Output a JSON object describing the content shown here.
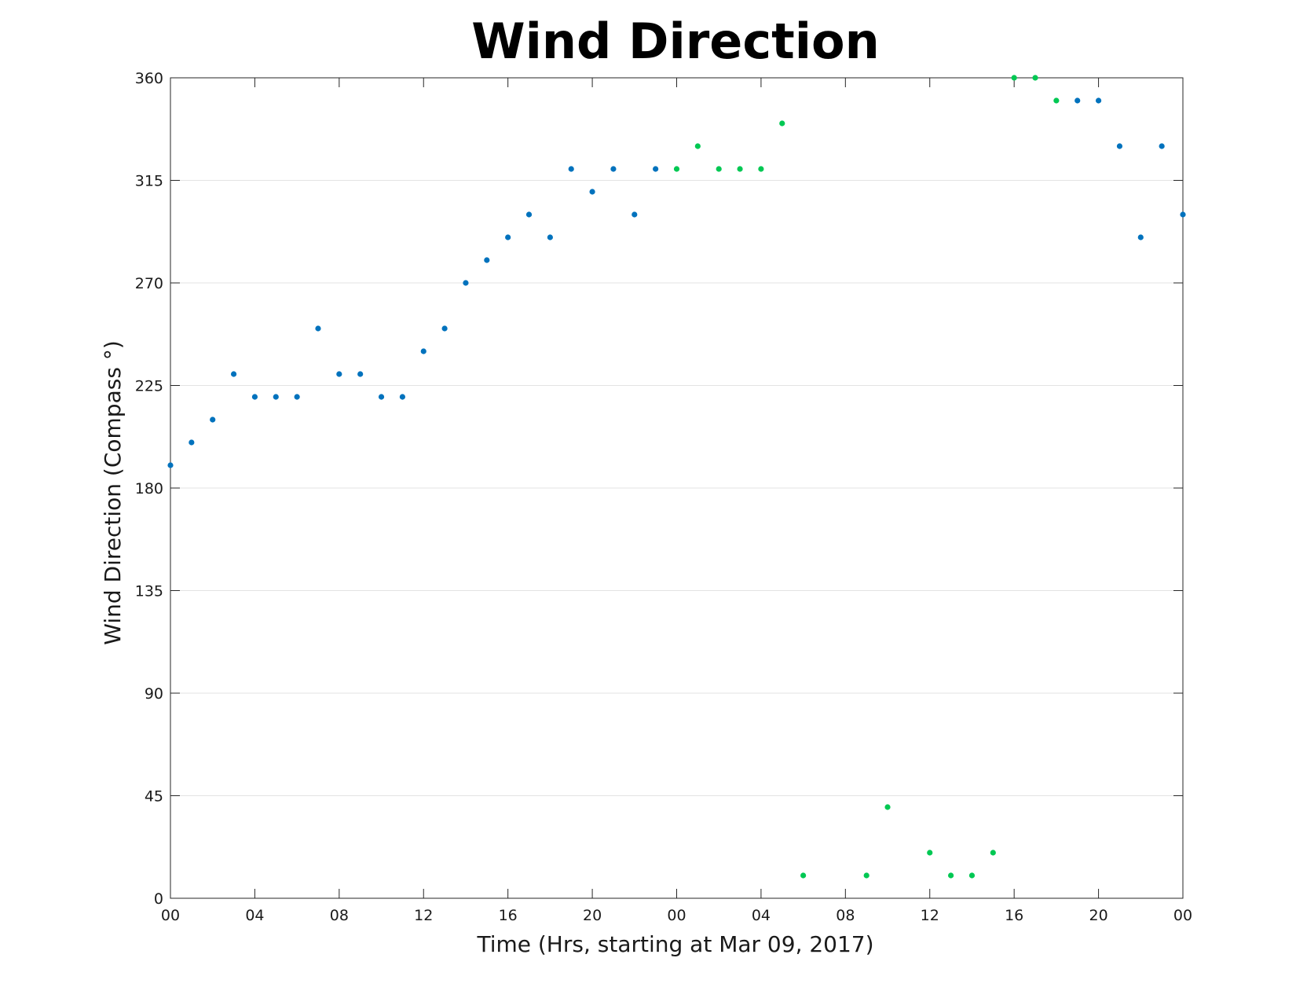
{
  "chart_data": {
    "type": "scatter",
    "title": "Wind Direction",
    "xlabel": "Time (Hrs, starting at Mar 09, 2017)",
    "ylabel": "Wind Direction (Compass °)",
    "x_unit": "hours",
    "xlim": [
      0,
      48
    ],
    "ylim": [
      0,
      360
    ],
    "x_ticks": [
      0,
      4,
      8,
      12,
      16,
      20,
      24,
      28,
      32,
      36,
      40,
      44,
      48
    ],
    "x_tick_labels": [
      "00",
      "04",
      "08",
      "12",
      "16",
      "20",
      "00",
      "04",
      "08",
      "12",
      "16",
      "20",
      "00"
    ],
    "y_ticks": [
      0,
      45,
      90,
      135,
      180,
      225,
      270,
      315,
      360
    ],
    "y_tick_labels": [
      "0",
      "45",
      "90",
      "135",
      "180",
      "225",
      "270",
      "315",
      "360"
    ],
    "grid": "horizontal",
    "series": [
      {
        "color": "#0072bd",
        "x": [
          0,
          1,
          2,
          3,
          4,
          5,
          6,
          7,
          8,
          9,
          10,
          11,
          12,
          13,
          14,
          15,
          16,
          17,
          18,
          19,
          20,
          21,
          22,
          23,
          43,
          44,
          45,
          46,
          47,
          48
        ],
        "y": [
          190,
          200,
          210,
          230,
          220,
          220,
          220,
          250,
          230,
          230,
          220,
          220,
          240,
          250,
          270,
          280,
          290,
          300,
          290,
          320,
          310,
          320,
          300,
          320,
          350,
          350,
          330,
          290,
          330,
          300
        ]
      },
      {
        "color": "#00c853",
        "x": [
          24,
          25,
          26,
          27,
          28,
          29,
          30,
          33,
          34,
          36,
          37,
          38,
          39,
          40,
          41,
          42
        ],
        "y": [
          320,
          330,
          320,
          320,
          320,
          340,
          10,
          10,
          40,
          20,
          10,
          10,
          20,
          360,
          360,
          350
        ]
      }
    ]
  }
}
